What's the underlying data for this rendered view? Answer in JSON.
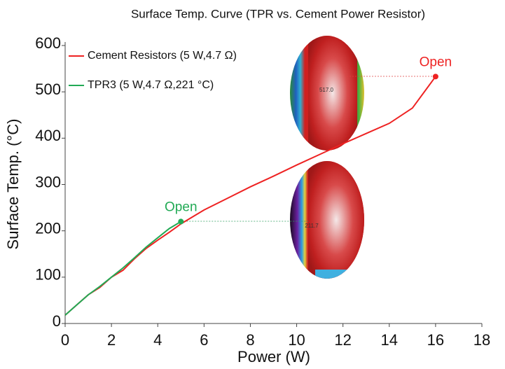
{
  "chart_data": {
    "type": "line",
    "title": "Surface Temp. Curve (TPR vs. Cement Power Resistor)",
    "x_label": "Power (W)",
    "y_label": "Surface Temp. (°C)",
    "xlim": [
      0,
      18
    ],
    "xticks": [
      0,
      2,
      4,
      6,
      8,
      10,
      12,
      14,
      16,
      18
    ],
    "ylim": [
      0,
      600
    ],
    "yticks": [
      0,
      100,
      200,
      300,
      400,
      500,
      600
    ],
    "grid": false,
    "legend": "top-left",
    "series": [
      {
        "name": "Cement  Resistors (5 W,4.7 Ω)",
        "color": "#ee2222",
        "x": [
          0,
          0.5,
          1,
          1.5,
          2,
          2.5,
          3,
          3.5,
          4,
          4.5,
          5,
          6,
          7,
          8,
          9,
          10,
          11,
          12,
          13,
          14,
          15,
          16
        ],
        "values": [
          18,
          40,
          62,
          78,
          100,
          115,
          140,
          162,
          180,
          197,
          215,
          245,
          270,
          295,
          318,
          342,
          365,
          388,
          410,
          432,
          465,
          533
        ]
      },
      {
        "name": "TPR3 (5 W,4.7 Ω,221 °C)",
        "color": "#22aa55",
        "x": [
          0,
          0.5,
          1,
          1.5,
          2,
          2.5,
          3,
          3.5,
          4,
          4.5,
          5
        ],
        "values": [
          18,
          40,
          62,
          80,
          100,
          120,
          142,
          165,
          185,
          205,
          220
        ]
      }
    ],
    "annotations": [
      {
        "text": "Open",
        "color": "#ee2222",
        "x": 16,
        "y": 533
      },
      {
        "text": "Open",
        "color": "#22aa55",
        "x": 5,
        "y": 220
      }
    ],
    "insets": [
      {
        "label": "517.0"
      },
      {
        "label": "211.7"
      }
    ]
  }
}
